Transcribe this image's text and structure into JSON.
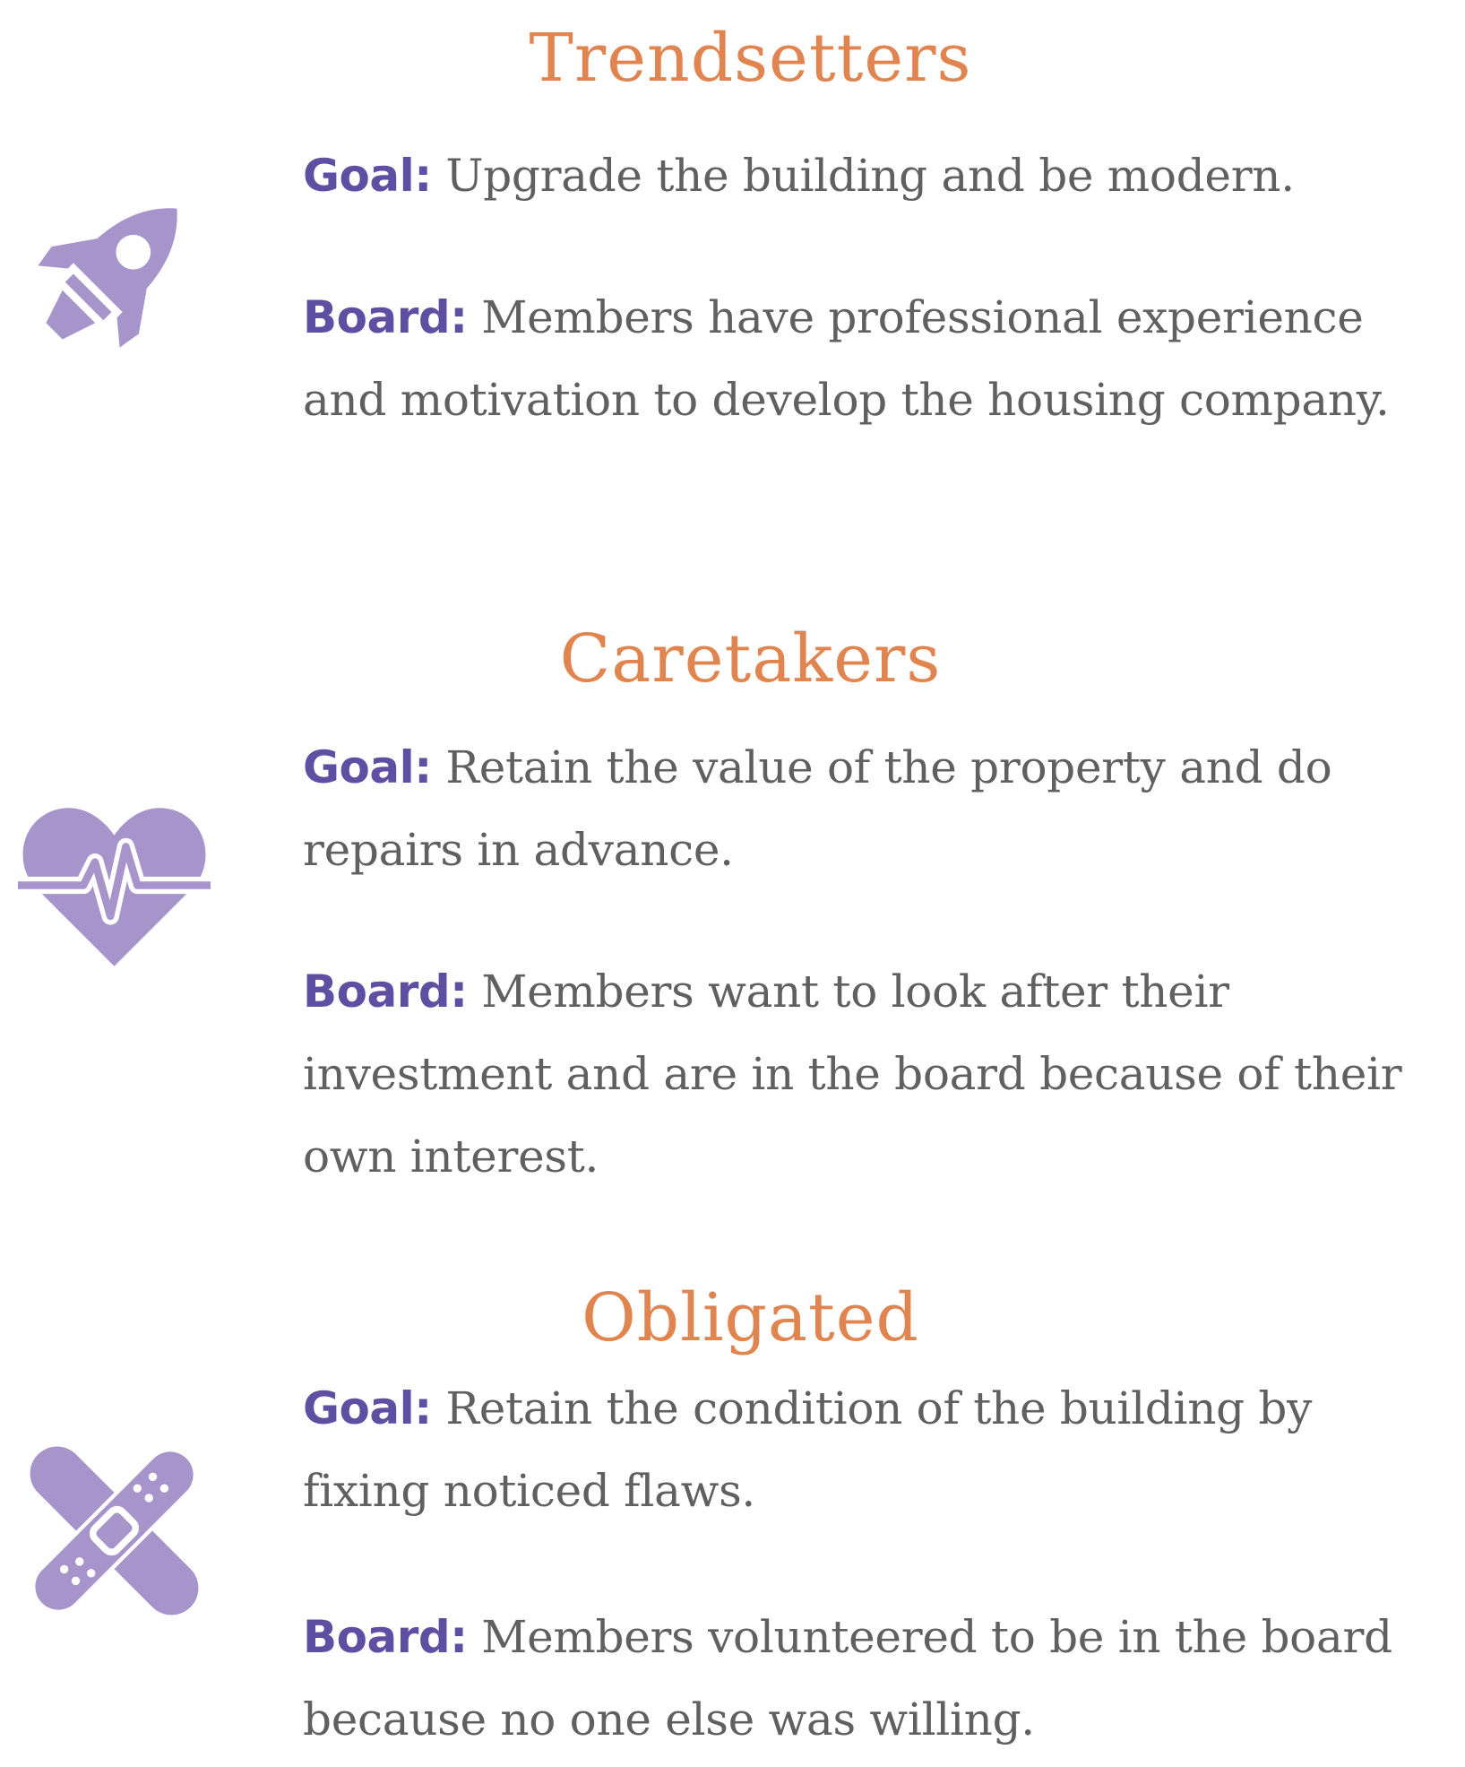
{
  "colors": {
    "title": "#E08550",
    "label": "#5E4FA3",
    "text": "#606060",
    "icon": "#A794CB"
  },
  "sections": [
    {
      "title": "Trendsetters",
      "icon": "rocket-icon",
      "goal_label": "Goal:",
      "goal_text": "Upgrade the building and be modern.",
      "board_label": "Board:",
      "board_text": "Members have professional experience and motivation to develop the housing company."
    },
    {
      "title": "Caretakers",
      "icon": "heartbeat-icon",
      "goal_label": "Goal:",
      "goal_text": "Retain the value of the property and do repairs in advance.",
      "board_label": "Board:",
      "board_text": "Members want to look after their investment and are in the board because of their own interest."
    },
    {
      "title": "Obligated",
      "icon": "bandage-icon",
      "goal_label": "Goal:",
      "goal_text": "Retain the condition of the building by fixing noticed flaws.",
      "board_label": "Board:",
      "board_text": "Members volunteered to be in the board because no one else was willing."
    }
  ]
}
